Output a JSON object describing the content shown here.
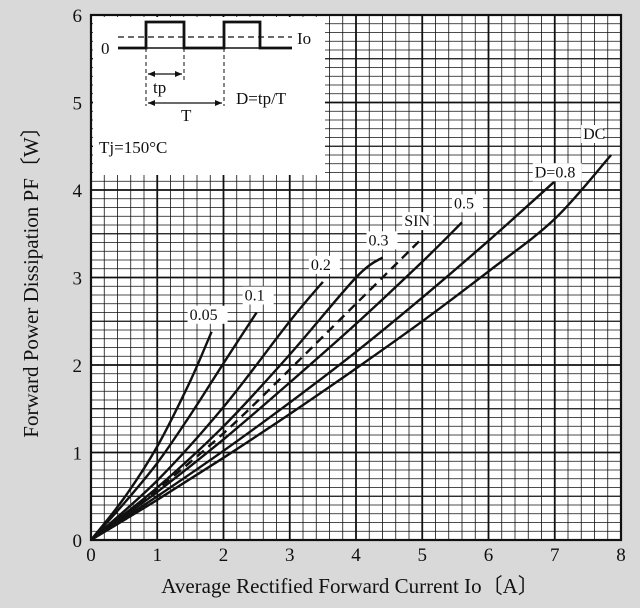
{
  "chart_data": {
    "type": "line",
    "xlabel": "Average Rectified Forward Current  Io〔A〕",
    "ylabel": "Forward Power Dissipation  PF〔W〕",
    "xlim": [
      0,
      8
    ],
    "ylim": [
      0,
      6
    ],
    "xticks": [
      "0",
      "1",
      "2",
      "3",
      "4",
      "5",
      "6",
      "7",
      "8"
    ],
    "yticks": [
      "0",
      "1",
      "2",
      "3",
      "4",
      "5",
      "6"
    ],
    "grid": true,
    "series": [
      {
        "name": "0.05",
        "style": "solid",
        "x": [
          0,
          0.5,
          1.0,
          1.5,
          1.82
        ],
        "y": [
          0,
          0.48,
          1.07,
          1.82,
          2.38
        ]
      },
      {
        "name": "0.1",
        "style": "solid",
        "x": [
          0,
          0.5,
          1.0,
          1.5,
          2.0,
          2.5
        ],
        "y": [
          0,
          0.42,
          0.88,
          1.43,
          2.02,
          2.6
        ]
      },
      {
        "name": "0.2",
        "style": "solid",
        "x": [
          0,
          1.0,
          2.0,
          3.0,
          3.5
        ],
        "y": [
          0,
          0.68,
          1.52,
          2.5,
          2.95
        ]
      },
      {
        "name": "0.3",
        "style": "solid",
        "x": [
          0,
          1.0,
          2.0,
          3.0,
          4.0,
          4.4
        ],
        "y": [
          0,
          0.6,
          1.3,
          2.12,
          3.0,
          3.23
        ]
      },
      {
        "name": "SIN",
        "style": "dashed",
        "x": [
          0,
          1.0,
          2.0,
          3.0,
          4.0,
          5.0
        ],
        "y": [
          0,
          0.58,
          1.22,
          1.95,
          2.7,
          3.45
        ]
      },
      {
        "name": "0.5",
        "style": "solid",
        "x": [
          0,
          1.0,
          2.0,
          3.0,
          4.0,
          5.0,
          5.6
        ],
        "y": [
          0,
          0.55,
          1.15,
          1.8,
          2.47,
          3.18,
          3.63
        ]
      },
      {
        "name": "D=0.8",
        "style": "solid",
        "x": [
          0,
          1.0,
          2.0,
          3.0,
          4.0,
          5.0,
          6.0,
          7.0
        ],
        "y": [
          0,
          0.5,
          1.02,
          1.57,
          2.15,
          2.77,
          3.42,
          4.1
        ]
      },
      {
        "name": "DC",
        "style": "solid",
        "x": [
          0,
          1.0,
          2.0,
          3.0,
          4.0,
          5.0,
          6.0,
          7.0,
          7.85
        ],
        "y": [
          0,
          0.46,
          0.94,
          1.44,
          1.96,
          2.5,
          3.07,
          3.67,
          4.4
        ]
      }
    ],
    "inset": {
      "zero_label": "0",
      "io_label": "Io",
      "tp_label": "tp",
      "t_label": "T",
      "duty_label": "D=tp/T",
      "tj_label": "Tj=150°C"
    }
  }
}
